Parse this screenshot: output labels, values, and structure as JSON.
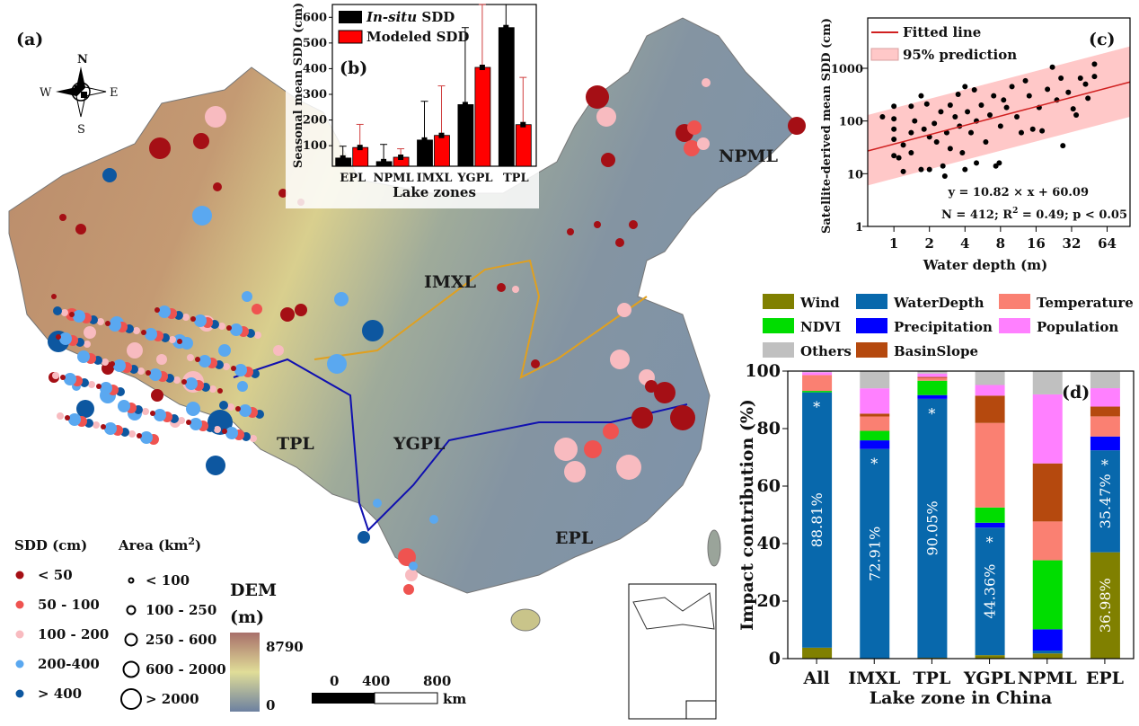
{
  "panel_a": {
    "label": "(a)",
    "compass": {
      "n": "N",
      "s": "S",
      "e": "E",
      "w": "W"
    },
    "zones": [
      "IMXL",
      "TPL",
      "YGPL",
      "EPL",
      "NPML"
    ],
    "legend_sdd": {
      "title": "SDD (cm)",
      "items": [
        {
          "label": "< 50",
          "color": "#a50f15"
        },
        {
          "label": "50 - 100",
          "color": "#ef5350"
        },
        {
          "label": "100 - 200",
          "color": "#f8bbc0"
        },
        {
          "label": "200-400",
          "color": "#5aa8f0"
        },
        {
          "label": "> 400",
          "color": "#0d57a0"
        }
      ]
    },
    "legend_area": {
      "title": "Area (km",
      "title_sup": "2",
      "title_end": ")",
      "items": [
        "< 100",
        "100 - 250",
        "250 - 600",
        "600 - 2000",
        "> 2000"
      ]
    },
    "dem": {
      "title": "DEM",
      "unit": "(m)",
      "max": "8790",
      "min": "0"
    },
    "scalebar": {
      "ticks": [
        "0",
        "400",
        "800"
      ],
      "unit": "km"
    }
  },
  "chart_data": [
    {
      "panel": "(b)",
      "type": "bar",
      "title": "",
      "xlabel": "Lake zones",
      "ylabel": "Seasonal mean SDD (cm)",
      "ylim": [
        20,
        650
      ],
      "yticks": [
        "100",
        "200",
        "300",
        "400",
        "500",
        "600"
      ],
      "categories": [
        "EPL",
        "NPML",
        "IMXL",
        "YGPL",
        "TPL"
      ],
      "series": [
        {
          "name_italic": "In-situ",
          "name": " SDD",
          "color": "#000000",
          "values": [
            52,
            38,
            122,
            260,
            560
          ],
          "error_upper": [
            98,
            105,
            273,
            560,
            650
          ]
        },
        {
          "name": "Modeled SDD",
          "color": "#ff0000",
          "values": [
            93,
            55,
            140,
            405,
            182
          ],
          "error_upper": [
            183,
            88,
            333,
            650,
            366
          ]
        }
      ]
    },
    {
      "panel": "(c)",
      "type": "scatter",
      "xlabel": "Water depth (m)",
      "ylabel": "Satellite-derived mean SDD (cm)",
      "xscale": "log2",
      "yscale": "log10",
      "xlim": [
        0.6,
        100
      ],
      "ylim": [
        1,
        9000
      ],
      "xticks": [
        "1",
        "2",
        "4",
        "8",
        "16",
        "32",
        "64"
      ],
      "yticks": [
        "1",
        "10",
        "100",
        "1000"
      ],
      "legend": {
        "fit": "Fitted line",
        "band": "95% prediction"
      },
      "fit_line": [
        [
          0.6,
          27
        ],
        [
          100,
          550
        ]
      ],
      "band_lower": [
        [
          0.6,
          6
        ],
        [
          100,
          120
        ]
      ],
      "band_upper": [
        [
          0.6,
          130
        ],
        [
          100,
          2600
        ]
      ],
      "equation": "y = 10.82 × x + 60.09",
      "stats": {
        "n": "N = 412; R",
        "sup": "2",
        "rest": " = 0.49; p < 0.05"
      },
      "points": [
        [
          0.8,
          120
        ],
        [
          1,
          190
        ],
        [
          1,
          110
        ],
        [
          1,
          70
        ],
        [
          1,
          22
        ],
        [
          1,
          45
        ],
        [
          1.1,
          20
        ],
        [
          1.2,
          35
        ],
        [
          1.2,
          11
        ],
        [
          1.4,
          190
        ],
        [
          1.4,
          60
        ],
        [
          1.4,
          25
        ],
        [
          1.5,
          100
        ],
        [
          1.7,
          300
        ],
        [
          1.7,
          12
        ],
        [
          1.8,
          70
        ],
        [
          1.9,
          210
        ],
        [
          2,
          12
        ],
        [
          2,
          50
        ],
        [
          2.2,
          90
        ],
        [
          2.3,
          40
        ],
        [
          2.5,
          150
        ],
        [
          2.6,
          14
        ],
        [
          2.7,
          9
        ],
        [
          2.8,
          60
        ],
        [
          3,
          200
        ],
        [
          3,
          30
        ],
        [
          3.3,
          120
        ],
        [
          3.5,
          320
        ],
        [
          3.6,
          80
        ],
        [
          3.8,
          25
        ],
        [
          4,
          450
        ],
        [
          4,
          12
        ],
        [
          4.2,
          150
        ],
        [
          4.5,
          60
        ],
        [
          4.8,
          390
        ],
        [
          5,
          16
        ],
        [
          5,
          100
        ],
        [
          5.5,
          200
        ],
        [
          6,
          40
        ],
        [
          6.5,
          130
        ],
        [
          7,
          300
        ],
        [
          7.3,
          14
        ],
        [
          7.8,
          16
        ],
        [
          8,
          80
        ],
        [
          8.5,
          250
        ],
        [
          9,
          180
        ],
        [
          10,
          450
        ],
        [
          11,
          120
        ],
        [
          12,
          60
        ],
        [
          13,
          580
        ],
        [
          14,
          300
        ],
        [
          15,
          70
        ],
        [
          17,
          180
        ],
        [
          18,
          65
        ],
        [
          20,
          400
        ],
        [
          22,
          1050
        ],
        [
          24,
          250
        ],
        [
          26,
          650
        ],
        [
          27,
          34
        ],
        [
          30,
          350
        ],
        [
          33,
          170
        ],
        [
          35,
          130
        ],
        [
          38,
          650
        ],
        [
          42,
          500
        ],
        [
          44,
          270
        ],
        [
          50,
          1200
        ],
        [
          50,
          700
        ]
      ]
    },
    {
      "panel": "(d)",
      "type": "bar",
      "stacked": true,
      "xlabel": "Lake zone in China",
      "ylabel": "Impact contribution (%)",
      "ylim": [
        0,
        100
      ],
      "yticks": [
        "0",
        "20",
        "40",
        "60",
        "80",
        "100"
      ],
      "categories": [
        "All",
        "IMXL",
        "TPL",
        "YGPL",
        "NPML",
        "EPL"
      ],
      "series": [
        {
          "name": "Wind",
          "color": "#808000",
          "values": [
            3.8,
            0,
            0.3,
            1.2,
            1.8,
            36.98
          ]
        },
        {
          "name": "WaterDepth",
          "color": "#0868ac",
          "values": [
            88.81,
            72.91,
            90.05,
            44.36,
            1.0,
            35.47
          ]
        },
        {
          "name": "Precipitation",
          "color": "#0000ff",
          "values": [
            0,
            3.0,
            1.3,
            1.7,
            7.4,
            4.8
          ]
        },
        {
          "name": "NDVI",
          "color": "#00dd00",
          "values": [
            0.5,
            3.3,
            5.0,
            5.3,
            24.0,
            0
          ]
        },
        {
          "name": "Temperature",
          "color": "#fa8072",
          "values": [
            5.5,
            5.0,
            1.0,
            29.4,
            13.5,
            7.0
          ]
        },
        {
          "name": "BasinSlope",
          "color": "#b5490e",
          "values": [
            0,
            1.0,
            0.3,
            9.5,
            20.2,
            3.4
          ]
        },
        {
          "name": "Population",
          "color": "#ff80ff",
          "values": [
            1.0,
            8.8,
            1.2,
            3.7,
            24.0,
            6.4
          ]
        },
        {
          "name": "Others",
          "color": "#c0c0c0",
          "values": [
            0.4,
            6.0,
            0.9,
            4.8,
            8.1,
            6.0
          ]
        }
      ],
      "value_labels": [
        "88.81%",
        "72.91%",
        "90.05%",
        "44.36%",
        "",
        "35.47%"
      ],
      "wind_label_epl": "36.98%",
      "significance_mark": "*"
    }
  ]
}
